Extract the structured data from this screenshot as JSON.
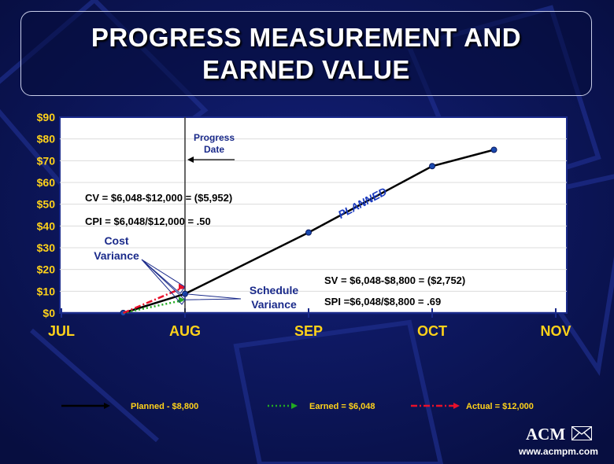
{
  "title": {
    "line1": "PROGRESS MEASUREMENT AND",
    "line2": "EARNED VALUE"
  },
  "chart_data": {
    "type": "line",
    "xlabels": [
      "JUL",
      "AUG",
      "SEP",
      "OCT",
      "NOV"
    ],
    "ylabels": [
      "$90",
      "$80",
      "$70",
      "$60",
      "$50",
      "$40",
      "$30",
      "$20",
      "$10",
      "$0"
    ],
    "ylim": [
      0,
      90
    ],
    "grid": true,
    "x_unit": "months from JUL",
    "series": [
      {
        "name": "Planned - $8,800",
        "color": "#000000",
        "style": "solid",
        "x": [
          0.5,
          1,
          2,
          3,
          3.5
        ],
        "y": [
          0,
          8.8,
          37,
          67.5,
          75
        ]
      },
      {
        "name": "Earned = $6,048",
        "color": "#22aa22",
        "style": "dotted",
        "x": [
          0.5,
          1
        ],
        "y": [
          0,
          6.05
        ]
      },
      {
        "name": "Actual = $12,000",
        "color": "#e8102a",
        "style": "dashdot",
        "x": [
          0.5,
          1
        ],
        "y": [
          0,
          12
        ]
      }
    ],
    "progress_date_label": [
      "Progress",
      "Date"
    ],
    "annotations": {
      "cv": "CV = $6,048-$12,000 = ($5,952)",
      "cpi": "CPI = $6,048/$12,000 = .50",
      "sv": "SV = $6,048-$8,800 = ($2,752)",
      "spi": "SPI =$6,048/$8,800 = .69",
      "cost_variance": [
        "Cost",
        "Variance"
      ],
      "schedule_variance": [
        "Schedule",
        "Variance"
      ],
      "planned": "PLANNED"
    }
  },
  "branding": {
    "logo": "ACM",
    "site": "www.acmpm.com"
  }
}
